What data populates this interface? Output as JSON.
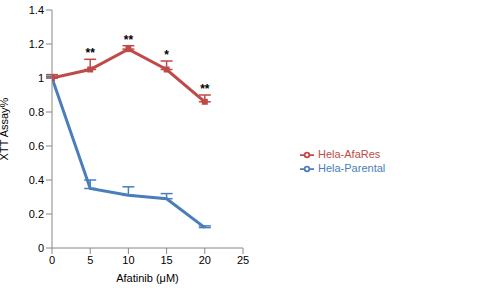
{
  "chart_data": {
    "type": "line",
    "x_label": "Afatinib (μM)",
    "y_label": "XTT Assay%",
    "x": [
      0,
      5,
      10,
      15,
      20
    ],
    "xlim": [
      0,
      25
    ],
    "xticks": [
      0,
      5,
      10,
      15,
      20,
      25
    ],
    "ylim": [
      0,
      1.4
    ],
    "yticks": [
      0,
      0.2,
      0.4,
      0.6,
      0.8,
      1,
      1.2,
      1.4
    ],
    "grid": false,
    "legend": "right",
    "series": [
      {
        "name": "Hela-Parental",
        "color": "#4a7ebb",
        "marker": "none",
        "values": [
          1.0,
          0.35,
          0.31,
          0.29,
          0.12
        ],
        "errors": [
          0.01,
          0.05,
          0.05,
          0.03,
          0.01
        ]
      },
      {
        "name": "Hela-AfaRes",
        "color": "#be4b48",
        "marker": "square",
        "values": [
          1.0,
          1.05,
          1.17,
          1.05,
          0.86
        ],
        "errors": [
          0.02,
          0.06,
          0.02,
          0.05,
          0.04
        ],
        "significance": [
          null,
          "**",
          "**",
          "*",
          "**"
        ]
      }
    ]
  }
}
